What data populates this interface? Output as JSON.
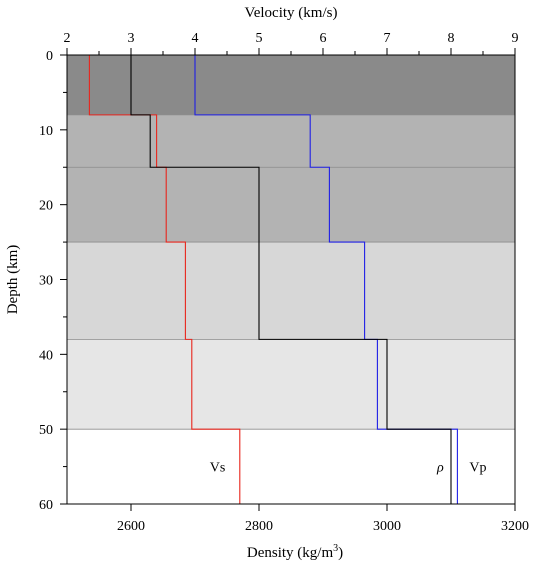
{
  "chart_data": {
    "type": "line",
    "top_axis": {
      "label": "Velocity (km/s)",
      "lim": [
        2,
        9
      ],
      "ticks": [
        2,
        3,
        4,
        5,
        6,
        7,
        8,
        9
      ]
    },
    "bottom_axis": {
      "label_prefix": "Density (kg/m",
      "label_sup": "3",
      "label_suffix": ")",
      "lim": [
        2500,
        3200
      ],
      "ticks": [
        2600,
        2800,
        3000,
        3200
      ]
    },
    "y_axis": {
      "label": "Depth (km)",
      "lim": [
        0,
        60
      ],
      "inverted": true,
      "ticks": [
        0,
        10,
        20,
        30,
        40,
        50,
        60
      ]
    },
    "layers": [
      {
        "top": 0,
        "bottom": 8,
        "color": "#8a8a8a"
      },
      {
        "top": 8,
        "bottom": 15,
        "color": "#b3b3b3"
      },
      {
        "top": 15,
        "bottom": 25,
        "color": "#b3b3b3"
      },
      {
        "top": 25,
        "bottom": 38,
        "color": "#d7d7d7"
      },
      {
        "top": 38,
        "bottom": 50,
        "color": "#e6e6e6"
      },
      {
        "top": 50,
        "bottom": 60,
        "color": "#ffffff"
      }
    ],
    "layer_boundaries": [
      8,
      15,
      25,
      38,
      50
    ],
    "series": [
      {
        "name": "Vs",
        "axis": "velocity",
        "color": "#e8251c",
        "steps": [
          {
            "top": 0,
            "bottom": 8,
            "value": 2.35
          },
          {
            "top": 8,
            "bottom": 15,
            "value": 3.4
          },
          {
            "top": 15,
            "bottom": 25,
            "value": 3.55
          },
          {
            "top": 25,
            "bottom": 38,
            "value": 3.85
          },
          {
            "top": 38,
            "bottom": 50,
            "value": 3.95
          },
          {
            "top": 50,
            "bottom": 60,
            "value": 4.7
          }
        ]
      },
      {
        "name": "Vp",
        "axis": "velocity",
        "color": "#1f1fe6",
        "steps": [
          {
            "top": 0,
            "bottom": 8,
            "value": 4.0
          },
          {
            "top": 8,
            "bottom": 15,
            "value": 5.8
          },
          {
            "top": 15,
            "bottom": 25,
            "value": 6.1
          },
          {
            "top": 25,
            "bottom": 38,
            "value": 6.65
          },
          {
            "top": 38,
            "bottom": 50,
            "value": 6.85
          },
          {
            "top": 50,
            "bottom": 60,
            "value": 8.1
          }
        ]
      },
      {
        "name": "ρ",
        "axis": "density",
        "color": "#000000",
        "steps": [
          {
            "top": 0,
            "bottom": 8,
            "value": 2600
          },
          {
            "top": 8,
            "bottom": 15,
            "value": 2630
          },
          {
            "top": 15,
            "bottom": 38,
            "value": 2800
          },
          {
            "top": 38,
            "bottom": 50,
            "value": 3000
          },
          {
            "top": 50,
            "bottom": 60,
            "value": 3100
          }
        ]
      }
    ],
    "annotations": [
      {
        "text": "Vs",
        "series": "Vs",
        "depth": 55,
        "side": "left"
      },
      {
        "text": "ρ",
        "series": "ρ",
        "depth": 55,
        "side": "left"
      },
      {
        "text": "Vp",
        "series": "Vp",
        "depth": 55,
        "side": "right"
      }
    ],
    "grid": false
  }
}
